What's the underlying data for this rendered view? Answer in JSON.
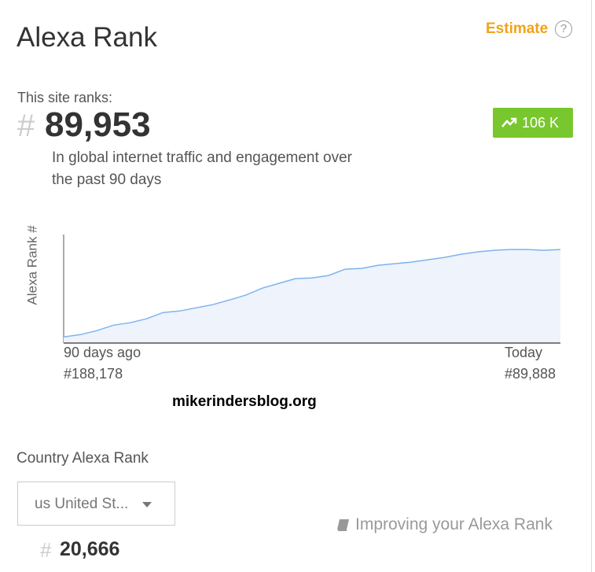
{
  "header": {
    "title": "Alexa Rank",
    "estimate": "Estimate",
    "help": "?"
  },
  "site_rank": {
    "label": "This site ranks:",
    "hash": "#",
    "rank": "89,953",
    "change": "106 K",
    "description": "In global internet traffic and engagement over the past 90 days"
  },
  "chart_data": {
    "type": "area",
    "y_label": "Alexa Rank #",
    "categories": [
      "90 days ago",
      null,
      null,
      null,
      null,
      null,
      null,
      null,
      null,
      null,
      null,
      null,
      null,
      null,
      null,
      null,
      null,
      null,
      null,
      null,
      null,
      null,
      null,
      null,
      null,
      null,
      null,
      null,
      null,
      null,
      "Today"
    ],
    "values": [
      188178,
      185500,
      181100,
      174900,
      172200,
      167800,
      160700,
      159000,
      155400,
      151900,
      146600,
      141200,
      133300,
      127900,
      122600,
      121800,
      119100,
      112000,
      111100,
      107600,
      105800,
      104000,
      101400,
      98700,
      95200,
      92500,
      90800,
      89900,
      89900,
      90800,
      89888
    ],
    "value_labels": [
      "#188,178",
      null,
      null,
      null,
      null,
      null,
      null,
      null,
      null,
      null,
      null,
      null,
      null,
      null,
      null,
      null,
      null,
      null,
      null,
      null,
      null,
      null,
      null,
      null,
      null,
      null,
      null,
      null,
      null,
      null,
      "#89,888"
    ],
    "ylim": [
      195000,
      73000
    ],
    "color": "#7fb3ef",
    "fill": "#eef3fc"
  },
  "watermark": "mikerindersblog.org",
  "country": {
    "title": "Country Alexa Rank",
    "selected": "us United St...",
    "hash": "#",
    "rank": "20,666"
  },
  "link": "Improving your Alexa Rank"
}
